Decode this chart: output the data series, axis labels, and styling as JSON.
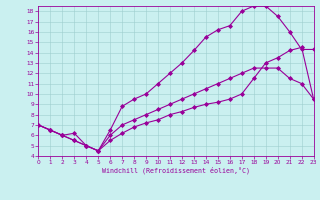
{
  "xlabel": "Windchill (Refroidissement éolien,°C)",
  "xlim": [
    0,
    23
  ],
  "ylim": [
    4,
    18.5
  ],
  "yticks": [
    4,
    5,
    6,
    7,
    8,
    9,
    10,
    11,
    12,
    13,
    14,
    15,
    16,
    17,
    18
  ],
  "xticks": [
    0,
    1,
    2,
    3,
    4,
    5,
    6,
    7,
    8,
    9,
    10,
    11,
    12,
    13,
    14,
    15,
    16,
    17,
    18,
    19,
    20,
    21,
    22,
    23
  ],
  "bg_color": "#caf0f0",
  "line_color": "#990099",
  "curve1_x": [
    0,
    1,
    2,
    3,
    4,
    5,
    6,
    7,
    8,
    9,
    10,
    11,
    12,
    13,
    14,
    15,
    16,
    17,
    18,
    19,
    20,
    21,
    22,
    23
  ],
  "curve1_y": [
    7.0,
    6.5,
    6.0,
    6.2,
    5.0,
    4.5,
    6.5,
    8.8,
    9.5,
    10.0,
    11.0,
    12.0,
    13.0,
    14.2,
    15.5,
    16.2,
    16.6,
    18.0,
    18.5,
    18.5,
    17.5,
    16.0,
    14.3,
    14.3
  ],
  "curve2_x": [
    0,
    1,
    2,
    3,
    4,
    5,
    6,
    7,
    8,
    9,
    10,
    11,
    12,
    13,
    14,
    15,
    16,
    17,
    18,
    19,
    20,
    21,
    22,
    23
  ],
  "curve2_y": [
    7.0,
    6.5,
    6.0,
    5.5,
    5.0,
    4.5,
    6.0,
    7.0,
    7.5,
    8.0,
    8.5,
    9.0,
    9.5,
    10.0,
    10.5,
    11.0,
    11.5,
    12.0,
    12.5,
    12.5,
    12.5,
    11.5,
    11.0,
    9.5
  ],
  "curve3_x": [
    0,
    1,
    2,
    3,
    4,
    5,
    6,
    7,
    8,
    9,
    10,
    11,
    12,
    13,
    14,
    15,
    16,
    17,
    18,
    19,
    20,
    21,
    22,
    23
  ],
  "curve3_y": [
    7.0,
    6.5,
    6.0,
    5.5,
    5.0,
    4.5,
    5.5,
    6.2,
    6.8,
    7.2,
    7.5,
    8.0,
    8.3,
    8.7,
    9.0,
    9.2,
    9.5,
    10.0,
    11.5,
    13.0,
    13.5,
    14.2,
    14.5,
    9.5
  ]
}
